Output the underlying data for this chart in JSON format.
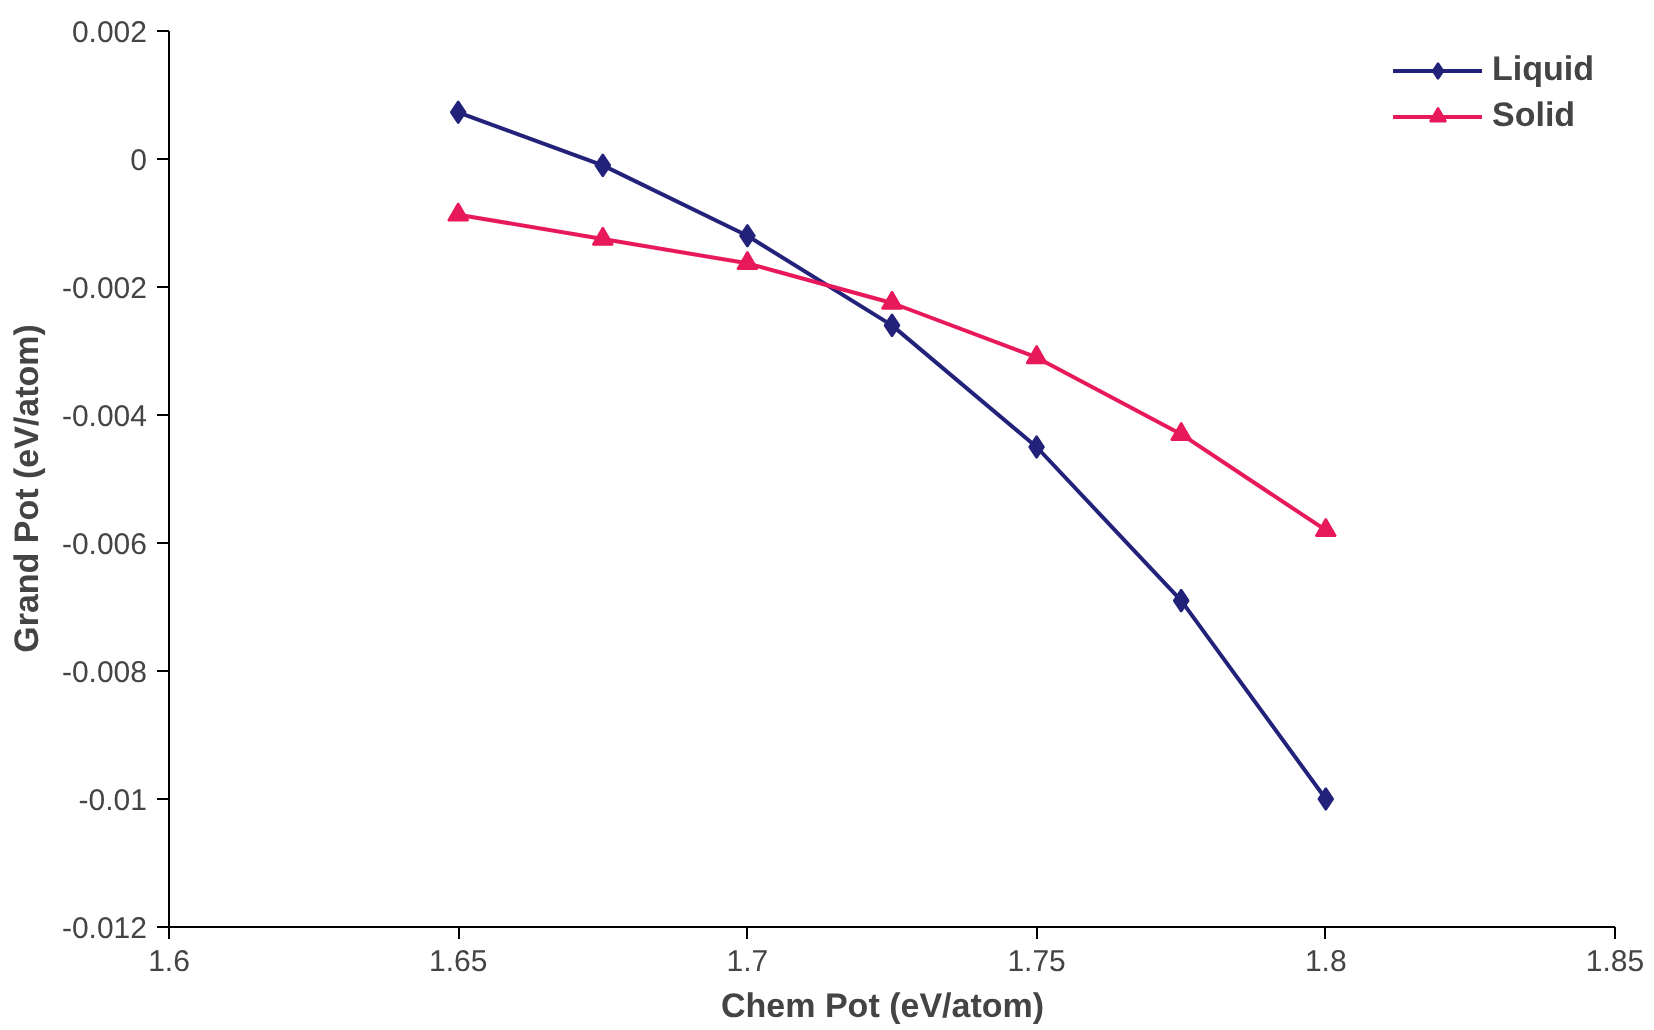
{
  "chart_data": {
    "type": "line",
    "xlabel": "Chem Pot   (eV/atom)",
    "ylabel": "Grand Pot   (eV/atom)",
    "x": [
      1.65,
      1.675,
      1.7,
      1.725,
      1.75,
      1.775,
      1.8
    ],
    "series": [
      {
        "name": "Liquid",
        "color": "#22227a",
        "marker": "diamond",
        "values": [
          0.00073,
          -0.0001,
          -0.0012,
          -0.0026,
          -0.0045,
          -0.0069,
          -0.01
        ]
      },
      {
        "name": "Solid",
        "color": "#e8195a",
        "marker": "triangle",
        "values": [
          -0.00087,
          -0.00125,
          -0.00163,
          -0.00225,
          -0.0031,
          -0.0043,
          -0.0058
        ]
      }
    ],
    "xlim": [
      1.6,
      1.85
    ],
    "xticks": [
      1.6,
      1.65,
      1.7,
      1.75,
      1.8,
      1.85
    ],
    "ylim": [
      -0.012,
      0.002
    ],
    "yticks": [
      0.002,
      0,
      -0.002,
      -0.004,
      -0.006,
      -0.008,
      -0.01,
      -0.012
    ],
    "grid": false,
    "legend": "top right",
    "line_style": "solid"
  }
}
